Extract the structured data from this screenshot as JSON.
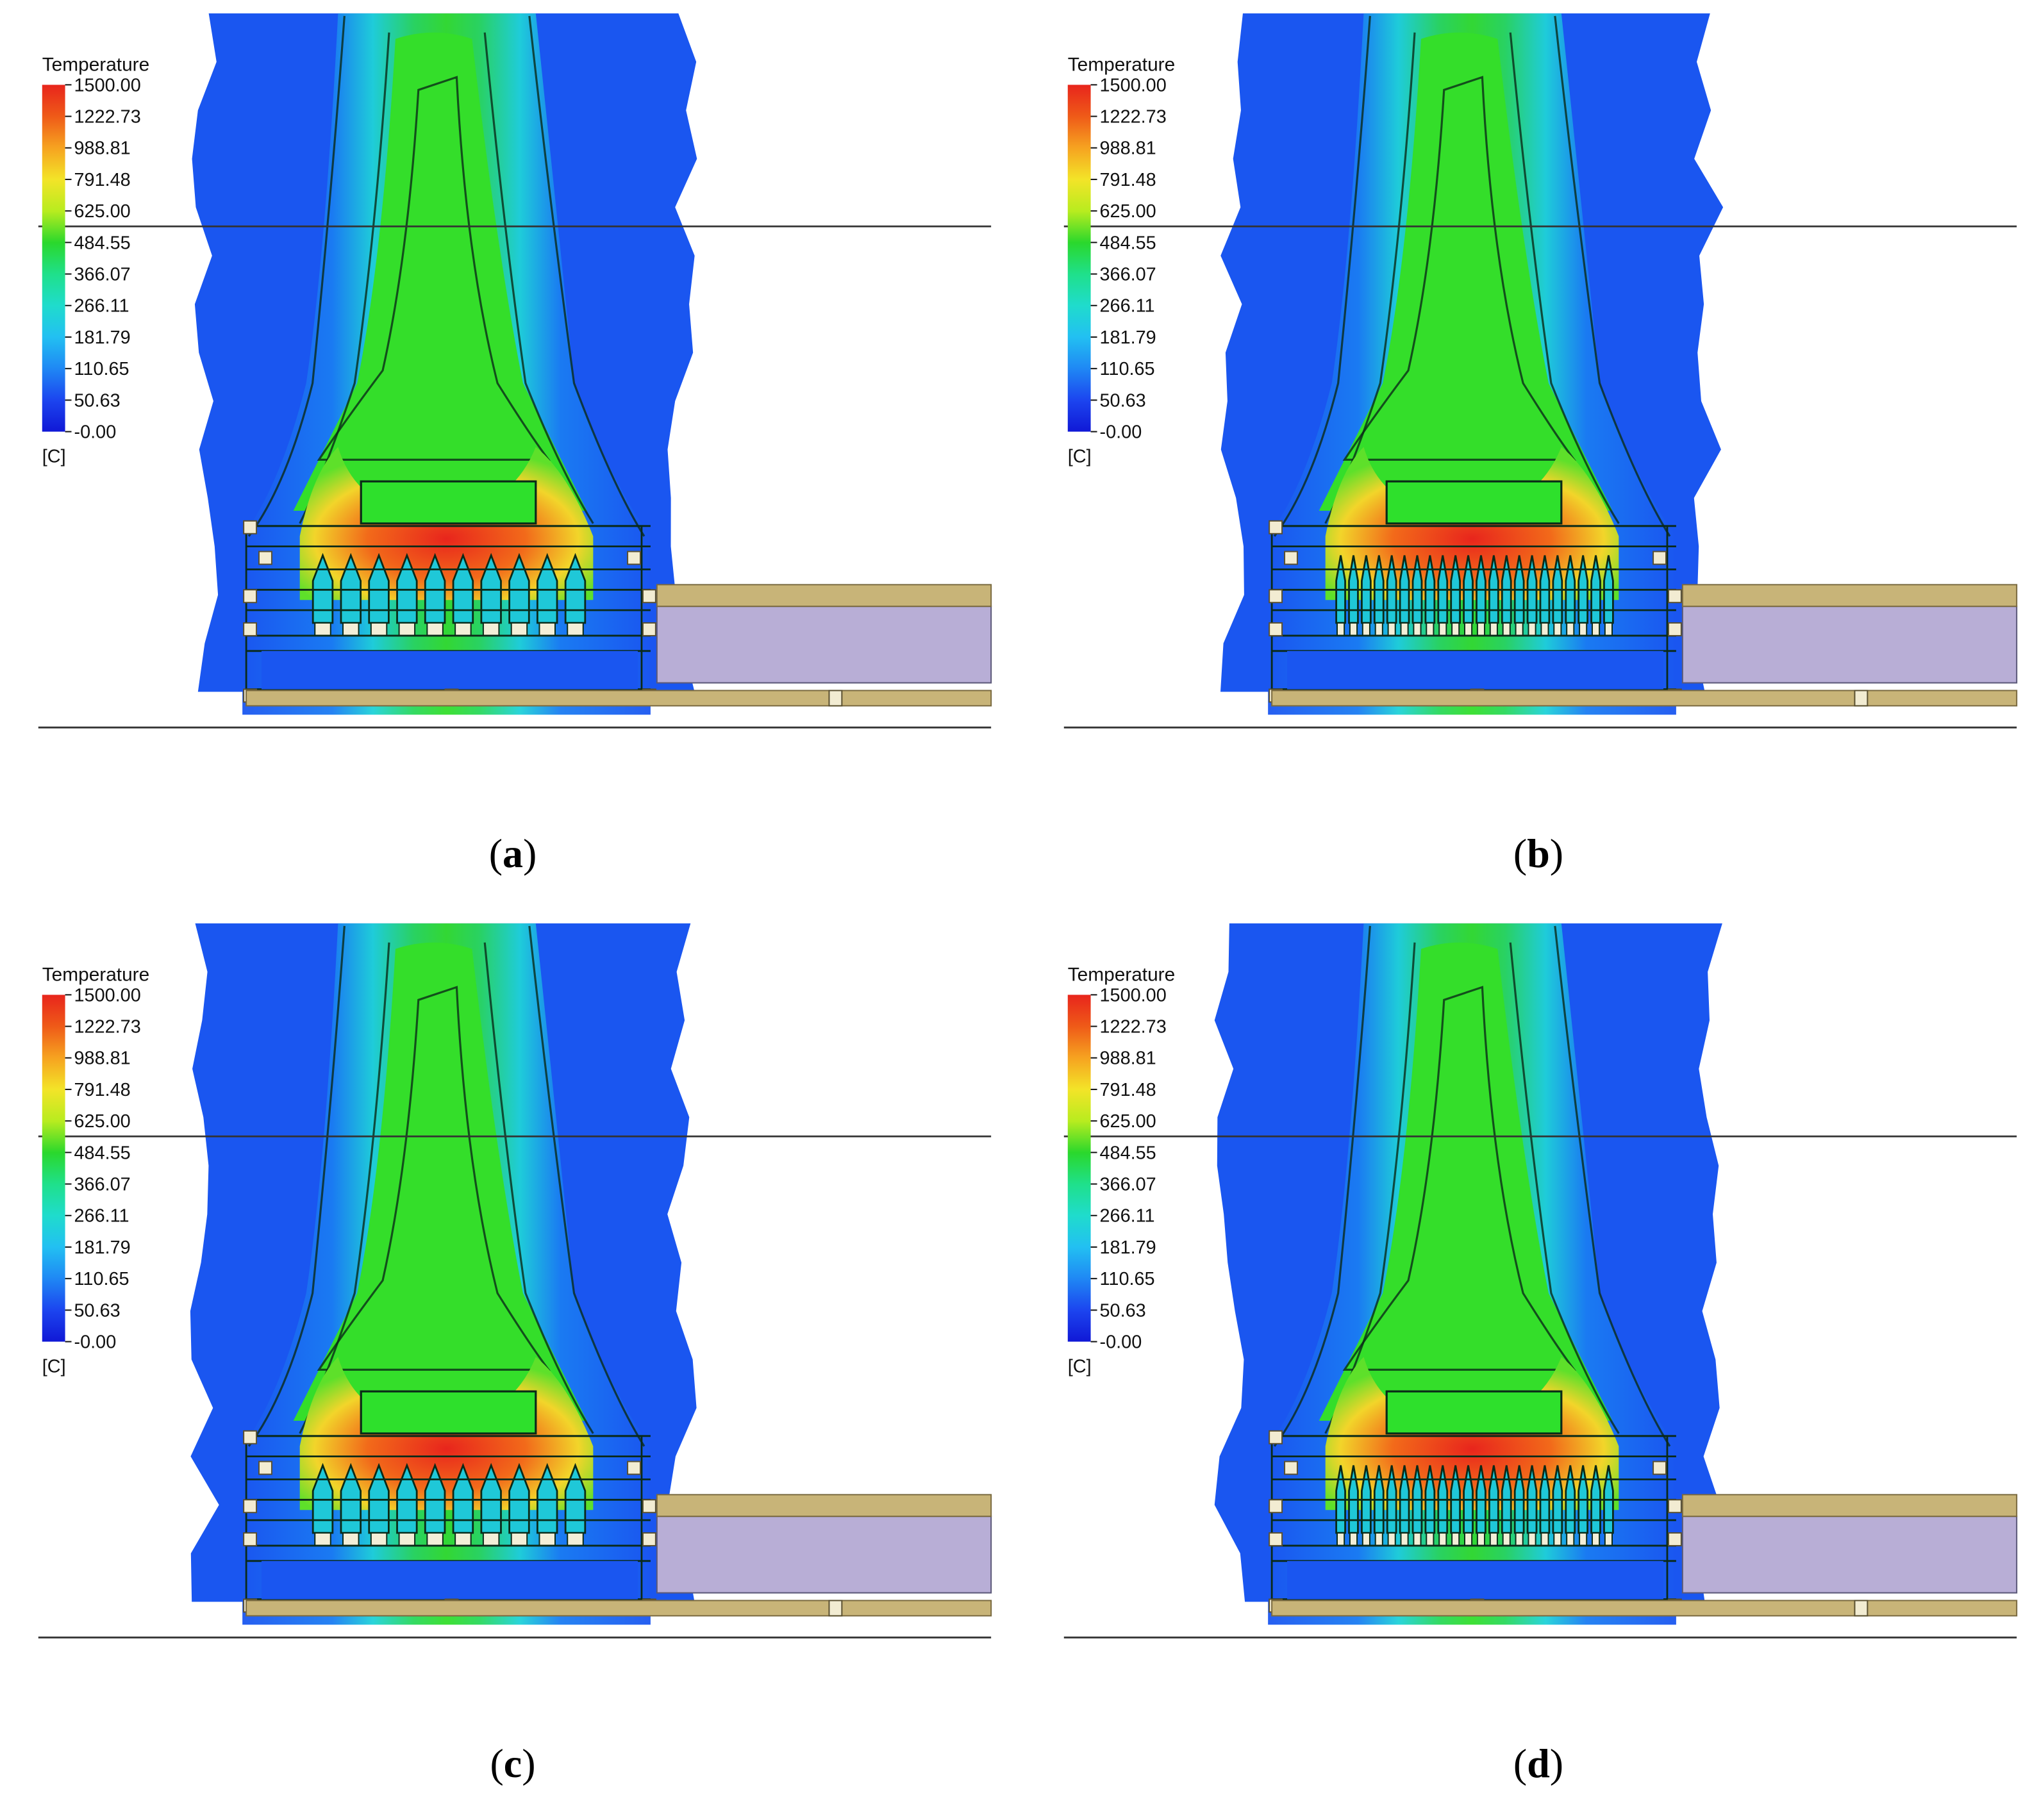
{
  "legend": {
    "title": "Temperature",
    "unit": "[C]",
    "ticks": [
      "1500.00",
      "1222.73",
      "988.81",
      "791.48",
      "625.00",
      "484.55",
      "366.07",
      "266.11",
      "181.79",
      "110.65",
      "50.63",
      "-0.00"
    ],
    "colors": [
      "#e8251c",
      "#ef5a18",
      "#f6a320",
      "#f3e428",
      "#b8ec1f",
      "#2ad82c",
      "#1fe08a",
      "#1fdccc",
      "#22c0f2",
      "#1f88f4",
      "#1c45ef",
      "#1018d6"
    ]
  },
  "panels": [
    {
      "id": "a",
      "caption": "a",
      "nozzles": 10
    },
    {
      "id": "b",
      "caption": "b",
      "nozzles": 22
    },
    {
      "id": "c",
      "caption": "c",
      "nozzles": 10
    },
    {
      "id": "d",
      "caption": "d",
      "nozzles": 22
    }
  ],
  "colors": {
    "cold": "#1a56f0",
    "flame_hot": "#e0301c",
    "plate": "#b8aed6",
    "beam": "#c8b478"
  }
}
